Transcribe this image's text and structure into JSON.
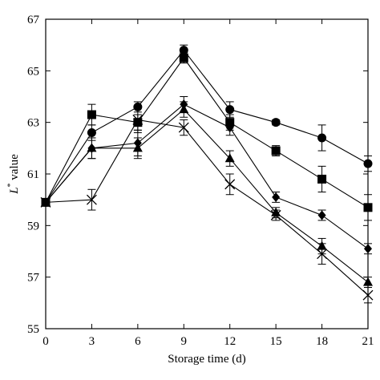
{
  "chart_data": {
    "type": "line",
    "xlabel": "Storage time (d)",
    "ylabel_main": "L",
    "ylabel_sup": "*",
    "ylabel_rest": " value",
    "xlim": [
      0,
      21
    ],
    "ylim": [
      55,
      67
    ],
    "xticks": [
      0,
      3,
      6,
      9,
      12,
      15,
      18,
      21
    ],
    "yticks": [
      55,
      57,
      59,
      61,
      63,
      65,
      67
    ],
    "grid": false,
    "legend": "none",
    "series": [
      {
        "marker": "circle",
        "x": [
          0,
          3,
          6,
          9,
          12,
          15,
          18,
          21
        ],
        "y": [
          59.9,
          62.6,
          63.6,
          65.8,
          63.5,
          63.0,
          62.4,
          61.4
        ],
        "err": [
          0.1,
          0.3,
          0.2,
          0.2,
          0.3,
          0.1,
          0.5,
          0.3
        ]
      },
      {
        "marker": "square",
        "x": [
          0,
          3,
          6,
          9,
          12,
          15,
          18,
          21
        ],
        "y": [
          59.9,
          63.3,
          63.0,
          65.5,
          63.0,
          61.9,
          60.8,
          59.7
        ],
        "err": [
          0.1,
          0.4,
          0.3,
          0.2,
          0.3,
          0.2,
          0.5,
          0.5
        ]
      },
      {
        "marker": "diamond",
        "x": [
          0,
          3,
          6,
          9,
          12,
          15,
          18,
          21
        ],
        "y": [
          59.9,
          62.0,
          62.2,
          63.7,
          62.8,
          60.1,
          59.4,
          58.1
        ],
        "err": [
          0.1,
          0.4,
          0.5,
          0.3,
          0.3,
          0.2,
          0.2,
          0.2
        ]
      },
      {
        "marker": "triangle",
        "x": [
          0,
          3,
          6,
          9,
          12,
          15,
          18,
          21
        ],
        "y": [
          59.9,
          62.0,
          62.0,
          63.5,
          61.6,
          59.5,
          58.2,
          56.8
        ],
        "err": [
          0.1,
          0.4,
          0.4,
          0.3,
          0.3,
          0.2,
          0.3,
          0.2
        ]
      },
      {
        "marker": "x",
        "x": [
          0,
          3,
          6,
          9,
          12,
          15,
          18,
          21
        ],
        "y": [
          59.9,
          60.0,
          63.1,
          62.8,
          60.6,
          59.4,
          57.9,
          56.3
        ],
        "err": [
          0.1,
          0.4,
          0.5,
          0.3,
          0.4,
          0.2,
          0.4,
          0.3
        ]
      }
    ]
  }
}
